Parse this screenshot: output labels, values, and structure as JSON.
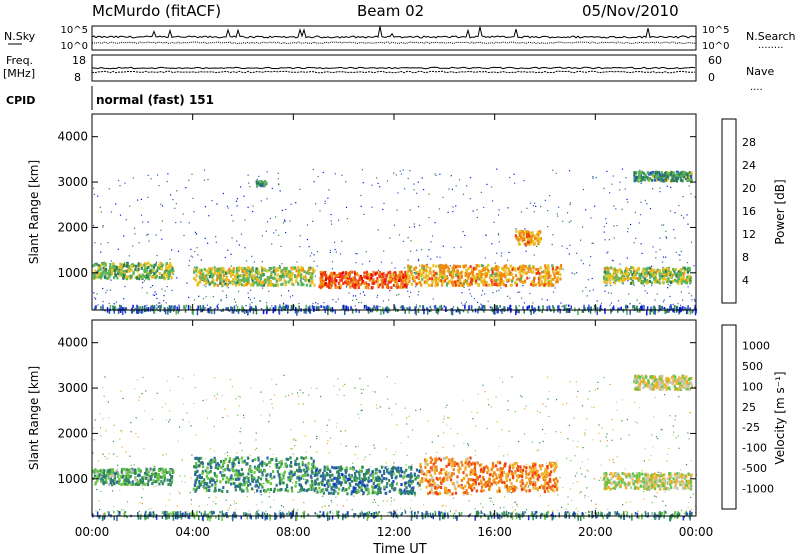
{
  "header": {
    "station": "McMurdo (fitACF)",
    "beam": "Beam 02",
    "date": "05/Nov/2010"
  },
  "side_labels": {
    "nsky": "N.Sky",
    "nsearch": "N.Search",
    "freq": "Freq.",
    "mhz": "[MHz]",
    "nave": "Nave",
    "cpid": "CPID",
    "dotted": "........",
    "dotted_short": "...."
  },
  "noise_axis": {
    "left_ticks": [
      "10^5",
      "10^0"
    ],
    "right_ticks": [
      "10^5",
      "10^0"
    ]
  },
  "freq_axis": {
    "left_ticks": [
      "18",
      "8"
    ],
    "right_ticks": [
      "60",
      "0"
    ]
  },
  "cpid_text": "normal (fast) 151",
  "chart_data": [
    {
      "type": "heatmap",
      "name": "power",
      "ylabel": "Slant Range [km]",
      "ylim": [
        180,
        4500
      ],
      "yticks": [
        1000,
        2000,
        3000,
        4000
      ],
      "colorbar": {
        "label": "Power [dB]",
        "ticks": [
          "4",
          "8",
          "12",
          "16",
          "20",
          "24",
          "28"
        ],
        "colors": [
          "#0a14e0",
          "#2a55c8",
          "#2f7d58",
          "#5ab45a",
          "#e8c020",
          "#f08a10",
          "#f03a10",
          "#e60000"
        ]
      },
      "bands": [
        {
          "t0": 0.0,
          "t1": 3.2,
          "r0": 900,
          "r1": 1250,
          "level": 0.45
        },
        {
          "t0": 4.0,
          "t1": 8.8,
          "r0": 750,
          "r1": 1150,
          "level": 0.5
        },
        {
          "t0": 9.0,
          "t1": 12.5,
          "r0": 700,
          "r1": 1050,
          "level": 0.8
        },
        {
          "t0": 12.5,
          "t1": 18.6,
          "r0": 750,
          "r1": 1200,
          "level": 0.65
        },
        {
          "t0": 20.3,
          "t1": 23.8,
          "r0": 800,
          "r1": 1150,
          "level": 0.5
        },
        {
          "t0": 16.8,
          "t1": 17.8,
          "r0": 1650,
          "r1": 1950,
          "level": 0.7
        },
        {
          "t0": 21.5,
          "t1": 23.8,
          "r0": 3050,
          "r1": 3250,
          "level": 0.35
        },
        {
          "t0": 6.5,
          "t1": 6.9,
          "r0": 2950,
          "r1": 3050,
          "level": 0.3
        }
      ]
    },
    {
      "type": "heatmap",
      "name": "velocity",
      "ylabel": "Slant Range [km]",
      "xlabel": "Time UT",
      "ylim": [
        180,
        4500
      ],
      "yticks": [
        1000,
        2000,
        3000,
        4000
      ],
      "xticks": [
        "00:00",
        "04:00",
        "08:00",
        "12:00",
        "16:00",
        "20:00",
        "00:00"
      ],
      "xlim_hours": [
        0,
        24
      ],
      "colorbar": {
        "label": "Velocity [m s⁻¹]",
        "ticks": [
          "1000",
          "500",
          "100",
          "25",
          "-25",
          "-100",
          "-500",
          "-1000"
        ],
        "colors": [
          "#1838c8",
          "#2b6a9a",
          "#2e8a5a",
          "#66c444",
          "#c8c8b4",
          "#f0b028",
          "#f08018",
          "#f04010",
          "#e60000"
        ]
      },
      "bands": [
        {
          "t0": 0.0,
          "t1": 3.2,
          "r0": 900,
          "r1": 1250,
          "level": 0.3
        },
        {
          "t0": 4.0,
          "t1": 8.8,
          "r0": 750,
          "r1": 1500,
          "level": 0.25
        },
        {
          "t0": 8.8,
          "t1": 13.0,
          "r0": 700,
          "r1": 1300,
          "level": 0.2
        },
        {
          "t0": 13.0,
          "t1": 15.0,
          "r0": 700,
          "r1": 1500,
          "level": 0.7
        },
        {
          "t0": 15.0,
          "t1": 18.5,
          "r0": 750,
          "r1": 1400,
          "level": 0.75
        },
        {
          "t0": 20.3,
          "t1": 23.8,
          "r0": 800,
          "r1": 1150,
          "level": 0.5
        },
        {
          "t0": 21.5,
          "t1": 23.8,
          "r0": 3000,
          "r1": 3300,
          "level": 0.5
        }
      ]
    }
  ]
}
